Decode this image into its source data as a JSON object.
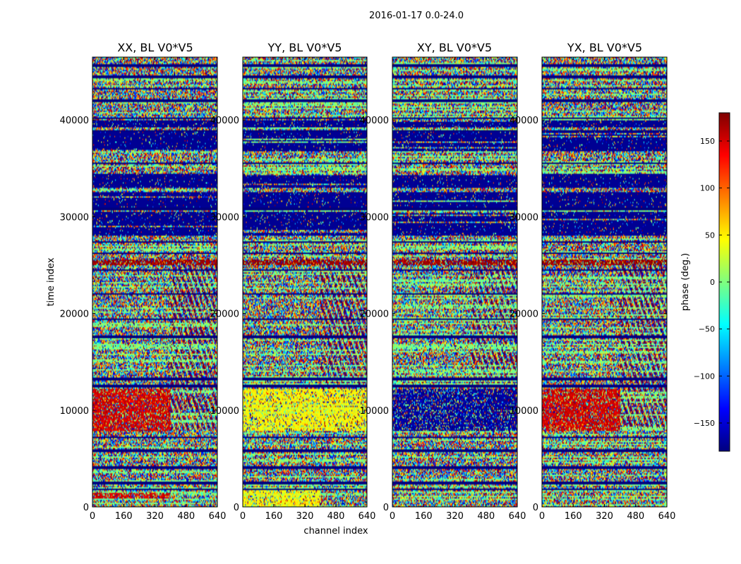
{
  "chart_data": {
    "type": "heatmap",
    "suptitle": "2016-01-17 0.0-24.0",
    "xlabel": "channel index",
    "ylabel": "time index",
    "xlim": [
      0,
      640
    ],
    "ylim": [
      0,
      46500
    ],
    "x_ticks": [
      0,
      160,
      320,
      480,
      640
    ],
    "x_tick_labels": [
      "0",
      "160",
      "320",
      "480",
      "640"
    ],
    "y_ticks": [
      0,
      10000,
      20000,
      30000,
      40000
    ],
    "y_tick_labels": [
      "0",
      "10000",
      "20000",
      "30000",
      "40000"
    ],
    "panels": [
      {
        "title": "XX, BL V0*V5",
        "dominant": [
          {
            "t0": 7800,
            "t1": 12200,
            "c0": 0,
            "c1": 400,
            "phase": 150
          },
          {
            "t0": 800,
            "t1": 1400,
            "c0": 0,
            "c1": 400,
            "phase": 150
          },
          {
            "t0": 25000,
            "t1": 25600,
            "c0": 0,
            "c1": 640,
            "phase": 170
          }
        ]
      },
      {
        "title": "YY, BL V0*V5",
        "dominant": [
          {
            "t0": 7800,
            "t1": 12200,
            "c0": 0,
            "c1": 640,
            "phase": 45
          },
          {
            "t0": 0,
            "t1": 1800,
            "c0": 0,
            "c1": 400,
            "phase": 45
          },
          {
            "t0": 25000,
            "t1": 25600,
            "c0": 0,
            "c1": 640,
            "phase": 170
          }
        ]
      },
      {
        "title": "XY, BL V0*V5",
        "dominant": [
          {
            "t0": 7800,
            "t1": 12200,
            "c0": 0,
            "c1": 640,
            "phase": -170
          },
          {
            "t0": 25000,
            "t1": 25600,
            "c0": 0,
            "c1": 640,
            "phase": 170
          }
        ]
      },
      {
        "title": "YX, BL V0*V5",
        "dominant": [
          {
            "t0": 7800,
            "t1": 12200,
            "c0": 0,
            "c1": 400,
            "phase": 150
          },
          {
            "t0": 25000,
            "t1": 25600,
            "c0": 0,
            "c1": 640,
            "phase": 170
          }
        ]
      }
    ],
    "flagged_bands": [
      [
        28000,
        30500
      ],
      [
        31000,
        32500
      ],
      [
        33000,
        34500
      ],
      [
        36800,
        38800
      ],
      [
        39200,
        40000
      ]
    ],
    "horizontal_gaps": [
      1800,
      2500,
      4100,
      5800,
      7200,
      12500,
      13200,
      17600,
      19400,
      22000,
      24500,
      26200,
      27400,
      30800,
      35500,
      38900,
      40200,
      42000,
      43200,
      44500,
      45600
    ],
    "colorbar": {
      "label": "phase (deg.)",
      "range": [
        -180,
        180
      ],
      "ticks": [
        150,
        100,
        50,
        0,
        -50,
        -100,
        -150
      ],
      "tick_labels": [
        "150",
        "100",
        "50",
        "0",
        "−50",
        "−100",
        "−150"
      ],
      "colormap": "jet"
    }
  }
}
